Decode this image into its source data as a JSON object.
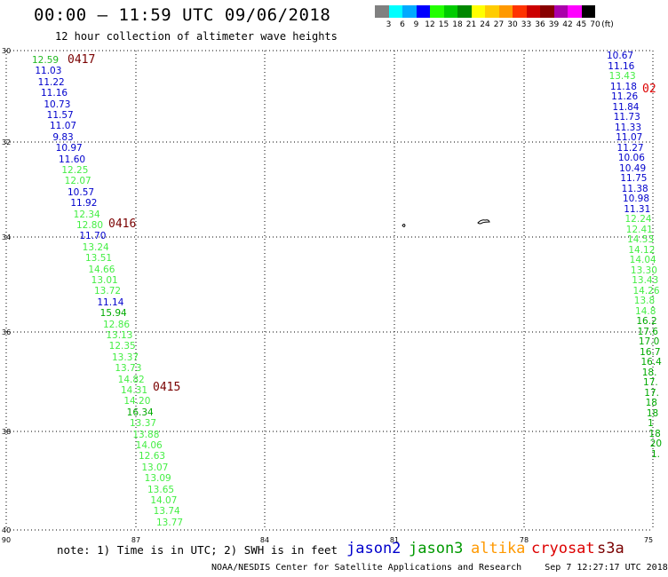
{
  "header": {
    "title": "00:00 – 11:59 UTC 09/06/2018",
    "subtitle": "12 hour collection of altimeter wave heights"
  },
  "scale": {
    "labels": [
      "3",
      "6",
      "9",
      "12",
      "15",
      "18",
      "21",
      "24",
      "27",
      "30",
      "33",
      "36",
      "39",
      "42",
      "45",
      "70"
    ],
    "unit": "(ft)",
    "colors": [
      "#808080",
      "#00ffff",
      "#00aaff",
      "#0000ff",
      "#22ff00",
      "#00cc00",
      "#008800",
      "#ffff00",
      "#ffcc00",
      "#ff9900",
      "#ff3300",
      "#cc0000",
      "#880000",
      "#aa00aa",
      "#ff00ff",
      "#000000"
    ]
  },
  "axes": {
    "lat_labels": [
      "30",
      "32",
      "34",
      "36",
      "38",
      "40"
    ],
    "lon_labels": [
      "90",
      "87",
      "84",
      "81",
      "78",
      "75"
    ]
  },
  "passes": {
    "p417": "0417",
    "p416": "0416",
    "p415": "0415",
    "right": "02"
  },
  "left_track": [
    {
      "v": "12.59",
      "c": "#22bb22"
    },
    {
      "v": "11.03",
      "c": "#0000cc"
    },
    {
      "v": "11.22",
      "c": "#0000cc"
    },
    {
      "v": "11.16",
      "c": "#0000cc"
    },
    {
      "v": "10.73",
      "c": "#0000cc"
    },
    {
      "v": "11.57",
      "c": "#0000cc"
    },
    {
      "v": "11.07",
      "c": "#0000cc"
    },
    {
      "v": "9.83",
      "c": "#0000cc"
    },
    {
      "v": "10.97",
      "c": "#0000cc"
    },
    {
      "v": "11.60",
      "c": "#0000cc"
    },
    {
      "v": "12.25",
      "c": "#44ee44"
    },
    {
      "v": "12.07",
      "c": "#44ee44"
    },
    {
      "v": "10.57",
      "c": "#0000cc"
    },
    {
      "v": "11.92",
      "c": "#0000cc"
    },
    {
      "v": "12.34",
      "c": "#44ee44"
    },
    {
      "v": "12.80",
      "c": "#44ee44"
    },
    {
      "v": "11.70",
      "c": "#0000cc"
    },
    {
      "v": "13.24",
      "c": "#44ee44"
    },
    {
      "v": "13.51",
      "c": "#44ee44"
    },
    {
      "v": "14.66",
      "c": "#44ee44"
    },
    {
      "v": "13.01",
      "c": "#44ee44"
    },
    {
      "v": "13.72",
      "c": "#44ee44"
    },
    {
      "v": "11.14",
      "c": "#0000cc"
    },
    {
      "v": "15.94",
      "c": "#00aa00"
    },
    {
      "v": "12.86",
      "c": "#44ee44"
    },
    {
      "v": "13.13",
      "c": "#44ee44"
    },
    {
      "v": "12.35",
      "c": "#44ee44"
    },
    {
      "v": "13.37",
      "c": "#44ee44"
    },
    {
      "v": "13.73",
      "c": "#44ee44"
    },
    {
      "v": "14.82",
      "c": "#44ee44"
    },
    {
      "v": "14.31",
      "c": "#44ee44"
    },
    {
      "v": "14.20",
      "c": "#44ee44"
    },
    {
      "v": "16.34",
      "c": "#00aa00"
    },
    {
      "v": "13.37",
      "c": "#44ee44"
    },
    {
      "v": "13.88",
      "c": "#44ee44"
    },
    {
      "v": "14.06",
      "c": "#44ee44"
    },
    {
      "v": "12.63",
      "c": "#44ee44"
    },
    {
      "v": "13.07",
      "c": "#44ee44"
    },
    {
      "v": "13.09",
      "c": "#44ee44"
    },
    {
      "v": "13.65",
      "c": "#44ee44"
    },
    {
      "v": "14.07",
      "c": "#44ee44"
    },
    {
      "v": "13.74",
      "c": "#44ee44"
    },
    {
      "v": "13.77",
      "c": "#44ee44"
    }
  ],
  "right_track": [
    {
      "v": "10.67",
      "c": "#0000cc"
    },
    {
      "v": "11.16",
      "c": "#0000cc"
    },
    {
      "v": "13.43",
      "c": "#44ee44"
    },
    {
      "v": "11.18",
      "c": "#0000cc"
    },
    {
      "v": "11.26",
      "c": "#0000cc"
    },
    {
      "v": "11.84",
      "c": "#0000cc"
    },
    {
      "v": "11.73",
      "c": "#0000cc"
    },
    {
      "v": "11.33",
      "c": "#0000cc"
    },
    {
      "v": "11.07",
      "c": "#0000cc"
    },
    {
      "v": "11.27",
      "c": "#0000cc"
    },
    {
      "v": "10.06",
      "c": "#0000cc"
    },
    {
      "v": "10.49",
      "c": "#0000cc"
    },
    {
      "v": "11.75",
      "c": "#0000cc"
    },
    {
      "v": "11.38",
      "c": "#0000cc"
    },
    {
      "v": "10.98",
      "c": "#0000cc"
    },
    {
      "v": "11.31",
      "c": "#0000cc"
    },
    {
      "v": "12.24",
      "c": "#44ee44"
    },
    {
      "v": "12.41",
      "c": "#44ee44"
    },
    {
      "v": "14.53",
      "c": "#44ee44"
    },
    {
      "v": "14.12",
      "c": "#44ee44"
    },
    {
      "v": "14.04",
      "c": "#44ee44"
    },
    {
      "v": "13.30",
      "c": "#44ee44"
    },
    {
      "v": "13.43",
      "c": "#44ee44"
    },
    {
      "v": "14.26",
      "c": "#44ee44"
    },
    {
      "v": "13.8",
      "c": "#44ee44"
    },
    {
      "v": "14.8",
      "c": "#44ee44"
    },
    {
      "v": "16.2",
      "c": "#00aa00"
    },
    {
      "v": "17.6",
      "c": "#00aa00"
    },
    {
      "v": "17.0",
      "c": "#00aa00"
    },
    {
      "v": "16.7",
      "c": "#00aa00"
    },
    {
      "v": "16.4",
      "c": "#00aa00"
    },
    {
      "v": "18.",
      "c": "#00aa00"
    },
    {
      "v": "17.",
      "c": "#00aa00"
    },
    {
      "v": "17.",
      "c": "#00aa00"
    },
    {
      "v": "18",
      "c": "#00aa00"
    },
    {
      "v": "18",
      "c": "#00aa00"
    },
    {
      "v": "1",
      "c": "#00aa00"
    },
    {
      "v": "18",
      "c": "#00aa00"
    },
    {
      "v": "20",
      "c": "#00aa00"
    },
    {
      "v": "1.",
      "c": "#00aa00"
    }
  ],
  "footer": {
    "note": "note: 1) Time is in UTC; 2) SWH is in feet",
    "satellites": [
      {
        "name": "jason2",
        "color": "#0000cc"
      },
      {
        "name": "jason3",
        "color": "#009900"
      },
      {
        "name": "altika",
        "color": "#ff9900"
      },
      {
        "name": "cryosat",
        "color": "#dd0000"
      },
      {
        "name": "s3a",
        "color": "#7a0000"
      }
    ],
    "credit": "NOAA/NESDIS Center for Satellite Applications and Research",
    "timestamp": "Sep  7 12:27:17 UTC 2018"
  }
}
